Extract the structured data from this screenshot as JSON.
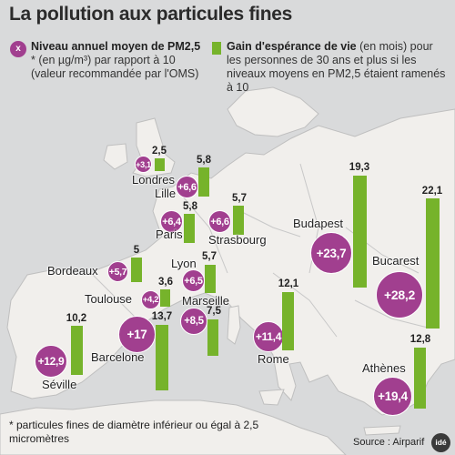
{
  "title": "La pollution aux particules fines",
  "legend": {
    "circle_symbol": "x",
    "pm_bold": "Niveau annuel moyen de PM2,5",
    "pm_rest": " * (en µg/m³) par rapport à 10 (valeur recommandée par l'OMS)",
    "gain_bold": "Gain d'espérance de vie",
    "gain_rest": " (en mois) pour les personnes de 30 ans et plus si les niveaux moyens en PM2,5 étaient ramenés à 10"
  },
  "footnote": "* particules fines de diamètre inférieur ou égal à 2,5 micromètres",
  "source": "Source : Airparif",
  "logo_text": "idé",
  "colors": {
    "circle": "#a13f8f",
    "bar": "#76b32b",
    "land": "#f1efec",
    "sea": "#d9dadb"
  },
  "cities": [
    {
      "name": "Londres",
      "pm_excess": "+3,1",
      "gain": "2,5"
    },
    {
      "name": "Lille",
      "pm_excess": "+6,6",
      "gain": "5,8"
    },
    {
      "name": "Paris",
      "pm_excess": "+6,4",
      "gain": "5,8"
    },
    {
      "name": "Strasbourg",
      "pm_excess": "+6,6",
      "gain": "5,7"
    },
    {
      "name": "Budapest",
      "pm_excess": "+23,7",
      "gain": "19,3"
    },
    {
      "name": "Bucarest",
      "pm_excess": "+28,2",
      "gain": "22,1"
    },
    {
      "name": "Bordeaux",
      "pm_excess": "+5,7",
      "gain": "5"
    },
    {
      "name": "Lyon",
      "pm_excess": "+6,5",
      "gain": "5,7"
    },
    {
      "name": "Toulouse",
      "pm_excess": "+4,2",
      "gain": "3,6"
    },
    {
      "name": "Marseille",
      "pm_excess": "+8,5",
      "gain": "7,5"
    },
    {
      "name": "Barcelone",
      "pm_excess": "+17",
      "gain": "13,7"
    },
    {
      "name": "Rome",
      "pm_excess": "+11,4",
      "gain": "12,1"
    },
    {
      "name": "Séville",
      "pm_excess": "+12,9",
      "gain": "10,2"
    },
    {
      "name": "Athènes",
      "pm_excess": "+19,4",
      "gain": "12,8"
    }
  ]
}
